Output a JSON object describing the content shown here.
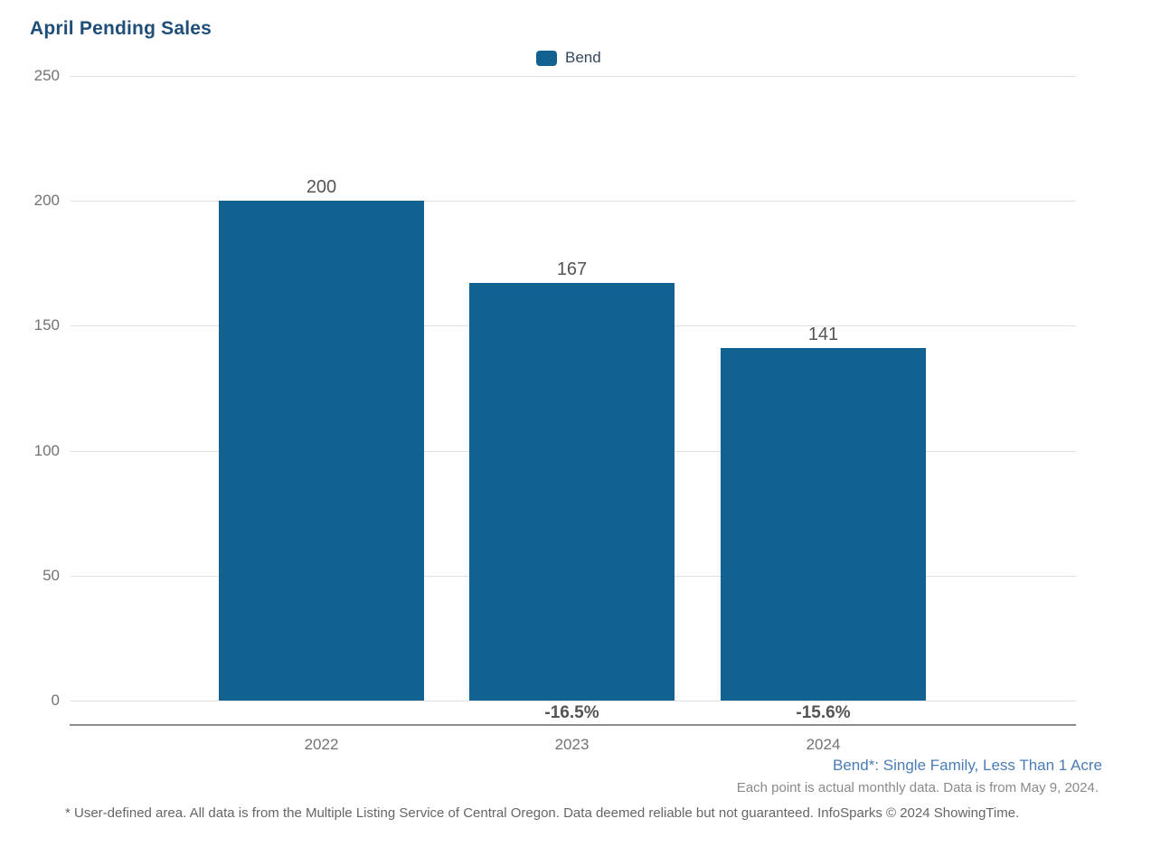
{
  "chart": {
    "title": "April Pending Sales",
    "legend": {
      "label": "Bend"
    }
  },
  "chart_data": {
    "type": "bar",
    "title": "April Pending Sales",
    "categories": [
      "2022",
      "2023",
      "2024"
    ],
    "series": [
      {
        "name": "Bend",
        "values": [
          200,
          167,
          141
        ]
      }
    ],
    "value_labels": [
      "200",
      "167",
      "141"
    ],
    "change_labels": [
      "",
      "-16.5%",
      "-15.6%"
    ],
    "ylim": [
      0,
      250
    ],
    "yticks": [
      0,
      50,
      100,
      150,
      200,
      250
    ],
    "grid": "horizontal",
    "legend_position": "top-center"
  },
  "footer": {
    "series_note": "Bend*: Single Family, Less Than 1 Acre",
    "data_note": "Each point is actual monthly data. Data is from May 9, 2024.",
    "disclaimer": "* User-defined area. All data is from the Multiple Listing Service of Central Oregon. Data deemed reliable but not guaranteed. InfoSparks © 2024 ShowingTime."
  },
  "colors": {
    "bar": "#116191",
    "title": "#1f4e79",
    "legend_text": "#33475c",
    "value_label": "#545454",
    "pct_label": "#545454",
    "tick_label": "#737373",
    "gridline": "#e0e0e0",
    "axis_line": "#8c8c8c",
    "series_note": "#4a7cb5",
    "data_note": "#8a8a8a",
    "disclaimer": "#666666"
  }
}
